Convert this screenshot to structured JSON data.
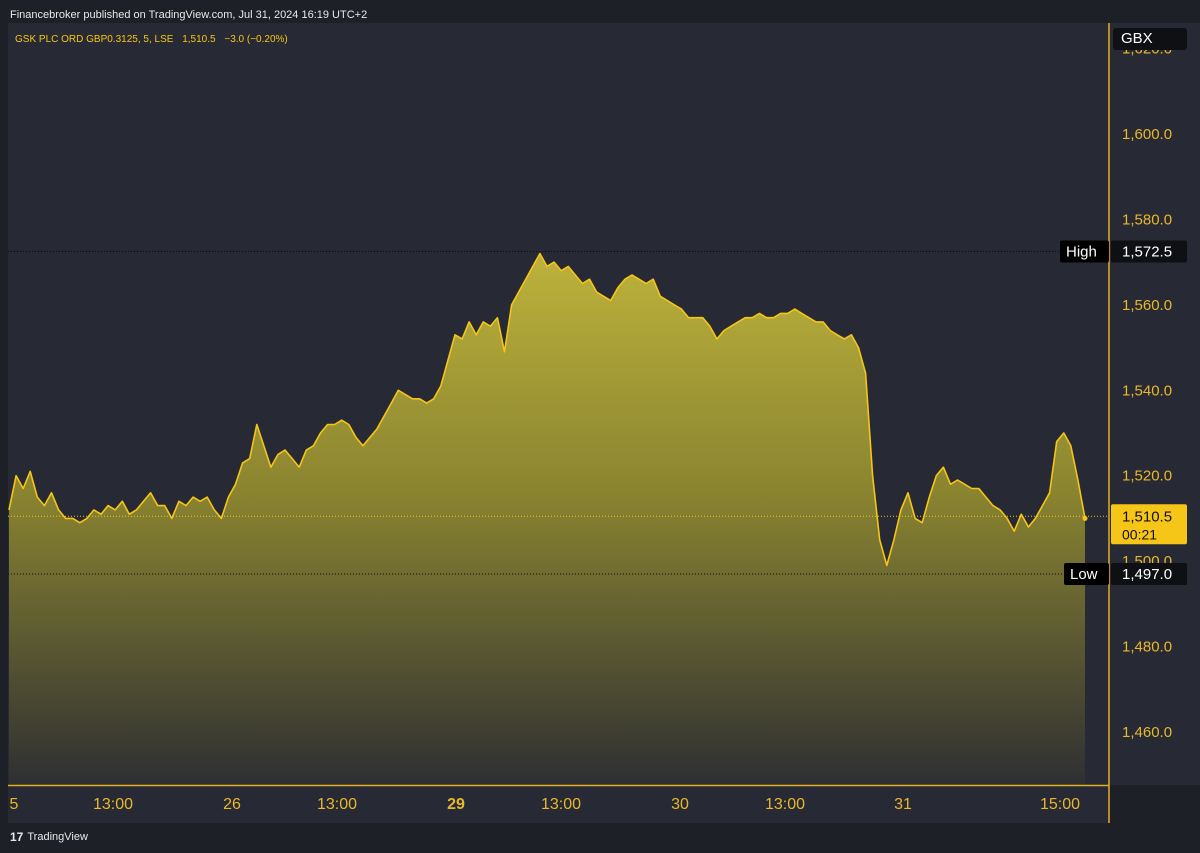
{
  "header": {
    "published": "Financebroker published on TradingView.com, Jul 31, 2024 16:19 UTC+2"
  },
  "legend": {
    "symbol_line": "GSK PLC ORD GBP0.3125, 5, LSE",
    "last": "1,510.5",
    "change": "−3.0 (−0.20%)"
  },
  "axis": {
    "currency": "GBX",
    "price_ticks": [
      "1,460.0",
      "1,480.0",
      "1,500.0",
      "1,520.0",
      "1,540.0",
      "1,560.0",
      "1,580.0",
      "1,600.0",
      "1,620.0"
    ]
  },
  "markers": {
    "high_label": "High",
    "high_value": "1,572.5",
    "low_label": "Low",
    "low_value": "1,497.0",
    "last_value": "1,510.5",
    "countdown": "00:21"
  },
  "footer": {
    "brand": "TradingView",
    "logo_glyph": "17"
  },
  "colors": {
    "background": "#1e2027",
    "panel": "#272a35",
    "line": "#f5c518",
    "area_top": "#b8ad39",
    "area_bottom": "#2c2d33",
    "axis_line": "#e0b020",
    "tick_text": "#e8b82a"
  },
  "chart_data": {
    "type": "area",
    "title": "GSK PLC ORD GBP0.3125, 5, LSE",
    "xlabel": "",
    "ylabel": "",
    "ylim": [
      1444,
      1622
    ],
    "x_ticks": [
      {
        "label": "5",
        "bold": false
      },
      {
        "label": "13:00",
        "bold": false
      },
      {
        "label": "26",
        "bold": false
      },
      {
        "label": "13:00",
        "bold": false
      },
      {
        "label": "29",
        "bold": true
      },
      {
        "label": "13:00",
        "bold": false
      },
      {
        "label": "30",
        "bold": false
      },
      {
        "label": "13:00",
        "bold": false
      },
      {
        "label": "31",
        "bold": false
      },
      {
        "label": "15:00",
        "bold": false
      }
    ],
    "y_ticks": [
      1460,
      1480,
      1500,
      1520,
      1540,
      1560,
      1580,
      1600,
      1620
    ],
    "series": [
      {
        "points": [
          [
            0,
            1512
          ],
          [
            1,
            1520
          ],
          [
            2,
            1517
          ],
          [
            3,
            1521
          ],
          [
            4,
            1515
          ],
          [
            5,
            1513
          ],
          [
            6,
            1516
          ],
          [
            7,
            1512
          ],
          [
            8,
            1510
          ],
          [
            9,
            1510
          ],
          [
            10,
            1509
          ],
          [
            11,
            1510
          ],
          [
            12,
            1512
          ],
          [
            13,
            1511
          ],
          [
            14,
            1513
          ],
          [
            15,
            1512
          ],
          [
            16,
            1514
          ],
          [
            17,
            1511
          ],
          [
            18,
            1512
          ],
          [
            19,
            1514
          ],
          [
            20,
            1516
          ],
          [
            21,
            1513
          ],
          [
            22,
            1513
          ],
          [
            23,
            1510
          ],
          [
            24,
            1514
          ],
          [
            25,
            1513
          ],
          [
            26,
            1515
          ],
          [
            27,
            1514
          ],
          [
            28,
            1515
          ],
          [
            29,
            1512
          ],
          [
            30,
            1510
          ],
          [
            31,
            1515
          ],
          [
            32,
            1518
          ],
          [
            33,
            1523
          ],
          [
            34,
            1524
          ],
          [
            35,
            1532
          ],
          [
            36,
            1527
          ],
          [
            37,
            1522
          ],
          [
            38,
            1525
          ],
          [
            39,
            1526
          ],
          [
            40,
            1524
          ],
          [
            41,
            1522
          ],
          [
            42,
            1526
          ],
          [
            43,
            1527
          ],
          [
            44,
            1530
          ],
          [
            45,
            1532
          ],
          [
            46,
            1532
          ],
          [
            47,
            1533
          ],
          [
            48,
            1532
          ],
          [
            49,
            1529
          ],
          [
            50,
            1527
          ],
          [
            51,
            1529
          ],
          [
            52,
            1531
          ],
          [
            53,
            1534
          ],
          [
            54,
            1537
          ],
          [
            55,
            1540
          ],
          [
            56,
            1539
          ],
          [
            57,
            1538
          ],
          [
            58,
            1538
          ],
          [
            59,
            1537
          ],
          [
            60,
            1538
          ],
          [
            61,
            1541
          ],
          [
            62,
            1547
          ],
          [
            63,
            1553
          ],
          [
            64,
            1552
          ],
          [
            65,
            1556
          ],
          [
            66,
            1553
          ],
          [
            67,
            1556
          ],
          [
            68,
            1555
          ],
          [
            69,
            1557
          ],
          [
            70,
            1549
          ],
          [
            71,
            1560
          ],
          [
            72,
            1563
          ],
          [
            73,
            1566
          ],
          [
            74,
            1569
          ],
          [
            75,
            1572
          ],
          [
            76,
            1569
          ],
          [
            77,
            1570
          ],
          [
            78,
            1568
          ],
          [
            79,
            1569
          ],
          [
            80,
            1567
          ],
          [
            81,
            1565
          ],
          [
            82,
            1566
          ],
          [
            83,
            1563
          ],
          [
            84,
            1562
          ],
          [
            85,
            1561
          ],
          [
            86,
            1564
          ],
          [
            87,
            1566
          ],
          [
            88,
            1567
          ],
          [
            89,
            1566
          ],
          [
            90,
            1565
          ],
          [
            91,
            1566
          ],
          [
            92,
            1562
          ],
          [
            93,
            1561
          ],
          [
            94,
            1560
          ],
          [
            95,
            1559
          ],
          [
            96,
            1557
          ],
          [
            97,
            1557
          ],
          [
            98,
            1557
          ],
          [
            99,
            1555
          ],
          [
            100,
            1552
          ],
          [
            101,
            1554
          ],
          [
            102,
            1555
          ],
          [
            103,
            1556
          ],
          [
            104,
            1557
          ],
          [
            105,
            1557
          ],
          [
            106,
            1558
          ],
          [
            107,
            1557
          ],
          [
            108,
            1557
          ],
          [
            109,
            1558
          ],
          [
            110,
            1558
          ],
          [
            111,
            1559
          ],
          [
            112,
            1558
          ],
          [
            113,
            1557
          ],
          [
            114,
            1556
          ],
          [
            115,
            1556
          ],
          [
            116,
            1554
          ],
          [
            117,
            1553
          ],
          [
            118,
            1552
          ],
          [
            119,
            1553
          ],
          [
            120,
            1550
          ],
          [
            121,
            1544
          ],
          [
            122,
            1520
          ],
          [
            123,
            1505
          ],
          [
            124,
            1499
          ],
          [
            125,
            1505
          ],
          [
            126,
            1512
          ],
          [
            127,
            1516
          ],
          [
            128,
            1510
          ],
          [
            129,
            1509
          ],
          [
            130,
            1515
          ],
          [
            131,
            1520
          ],
          [
            132,
            1522
          ],
          [
            133,
            1518
          ],
          [
            134,
            1519
          ],
          [
            135,
            1518
          ],
          [
            136,
            1517
          ],
          [
            137,
            1517
          ],
          [
            138,
            1515
          ],
          [
            139,
            1513
          ],
          [
            140,
            1512
          ],
          [
            141,
            1510
          ],
          [
            142,
            1507
          ],
          [
            143,
            1511
          ],
          [
            144,
            1508
          ],
          [
            145,
            1510
          ],
          [
            146,
            1513
          ],
          [
            147,
            1516
          ],
          [
            148,
            1528
          ],
          [
            149,
            1530
          ],
          [
            150,
            1527
          ],
          [
            151,
            1519
          ],
          [
            152,
            1510
          ]
        ]
      }
    ]
  }
}
